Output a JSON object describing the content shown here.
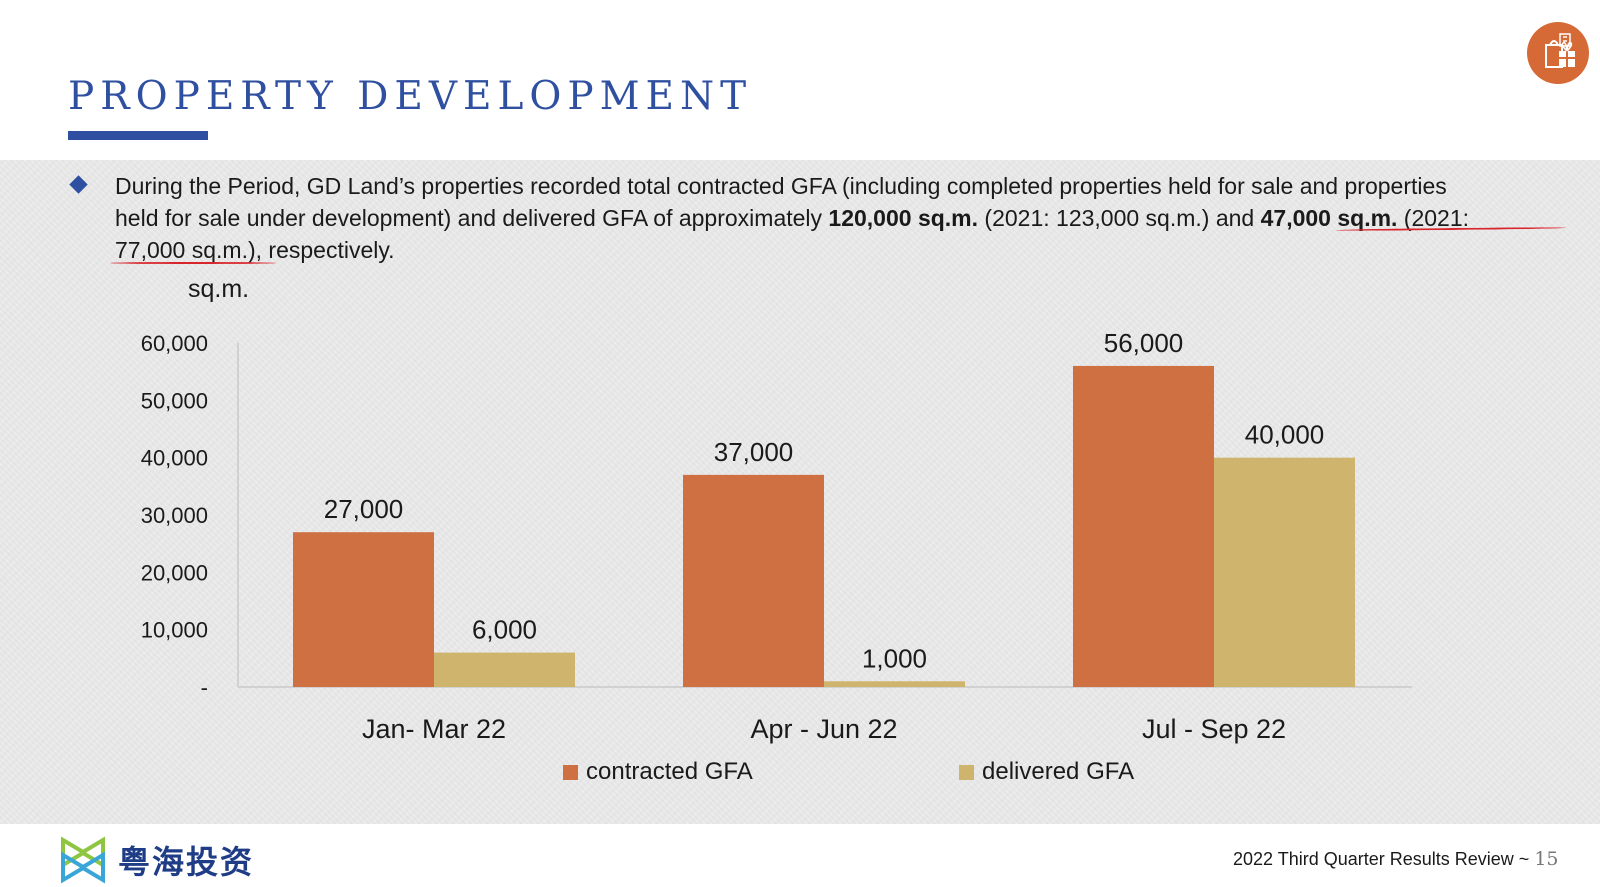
{
  "slide": {
    "title": "PROPERTY DEVELOPMENT",
    "paragraph": {
      "line1": "During the Period, GD Land’s properties recorded total contracted GFA (including completed properties held for sale and properties",
      "line2_a": "held for sale under development) and delivered GFA of approximately ",
      "line2_b": "120,000 sq.m.",
      "line2_c": " (2021: 123,000 sq.m.) and ",
      "line2_d": "47,000 sq.m.",
      "line2_e": " (2021:",
      "line3": "77,000 sq.m.), respectively."
    },
    "footer": {
      "company_name": "粤海投资",
      "report": "2022 Third Quarter Results Review ~",
      "page": "15"
    }
  },
  "colors": {
    "title_blue": "#2f4fa0",
    "contracted": "#cf7042",
    "delivered": "#cfb46e",
    "annotation_red": "#d8242b"
  },
  "icons": {
    "corner": "shopping-gift-icon",
    "logo": "gd-logo-icon"
  },
  "chart_data": {
    "type": "bar",
    "title": "",
    "ylabel": "sq.m.",
    "xlabel": "",
    "categories": [
      "Jan- Mar 22",
      "Apr - Jun 22",
      "Jul - Sep 22"
    ],
    "series": [
      {
        "name": "contracted GFA",
        "values": [
          27000,
          37000,
          56000
        ],
        "labels": [
          "27,000",
          "37,000",
          "56,000"
        ]
      },
      {
        "name": "delivered GFA",
        "values": [
          6000,
          1000,
          40000
        ],
        "labels": [
          "6,000",
          "1,000",
          "40,000"
        ]
      }
    ],
    "ylim": [
      0,
      60000
    ],
    "y_ticks": [
      {
        "value": 60000,
        "label": "60,000"
      },
      {
        "value": 50000,
        "label": "50,000"
      },
      {
        "value": 40000,
        "label": "40,000"
      },
      {
        "value": 30000,
        "label": "30,000"
      },
      {
        "value": 20000,
        "label": "20,000"
      },
      {
        "value": 10000,
        "label": "10,000"
      },
      {
        "value": 0,
        "label": "-"
      }
    ],
    "grid": false,
    "legend_position": "bottom"
  }
}
